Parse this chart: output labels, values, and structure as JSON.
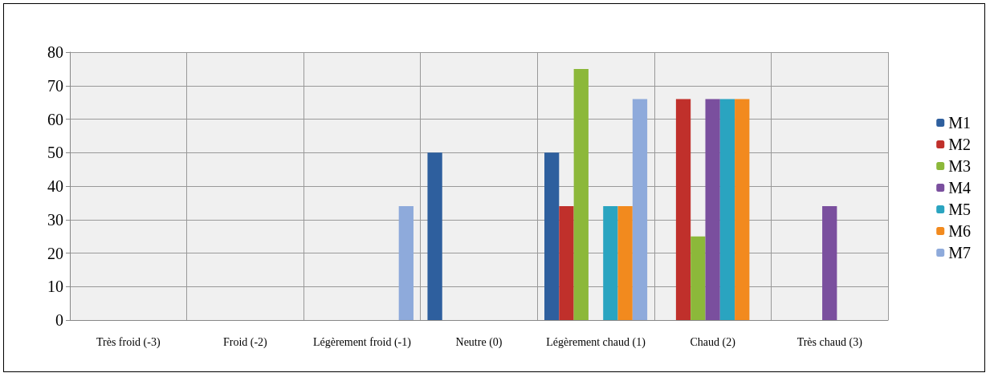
{
  "chart_data": {
    "type": "bar",
    "categories": [
      "Très froid (-3)",
      "Froid (-2)",
      "Légèrement froid (-1)",
      "Neutre (0)",
      "Légèrement chaud (1)",
      "Chaud (2)",
      "Très chaud (3)"
    ],
    "series": [
      {
        "name": "M1",
        "color": "#2e5f9e",
        "values": [
          null,
          null,
          null,
          50,
          50,
          null,
          null
        ]
      },
      {
        "name": "M2",
        "color": "#c0302b",
        "values": [
          null,
          null,
          null,
          null,
          34,
          66,
          null
        ]
      },
      {
        "name": "M3",
        "color": "#8cb83a",
        "values": [
          null,
          null,
          null,
          null,
          75,
          25,
          null
        ]
      },
      {
        "name": "M4",
        "color": "#7a4f9e",
        "values": [
          null,
          null,
          null,
          null,
          null,
          66,
          34
        ]
      },
      {
        "name": "M5",
        "color": "#2aa4c0",
        "values": [
          null,
          null,
          null,
          null,
          34,
          66,
          null
        ]
      },
      {
        "name": "M6",
        "color": "#f28a1e",
        "values": [
          null,
          null,
          null,
          null,
          34,
          66,
          null
        ]
      },
      {
        "name": "M7",
        "color": "#8eaadb",
        "values": [
          null,
          null,
          34,
          null,
          66,
          null,
          null
        ]
      }
    ],
    "ylim": [
      0,
      80
    ],
    "yticks": [
      0,
      10,
      20,
      30,
      40,
      50,
      60,
      70,
      80
    ],
    "grid": true,
    "legend": "right"
  }
}
